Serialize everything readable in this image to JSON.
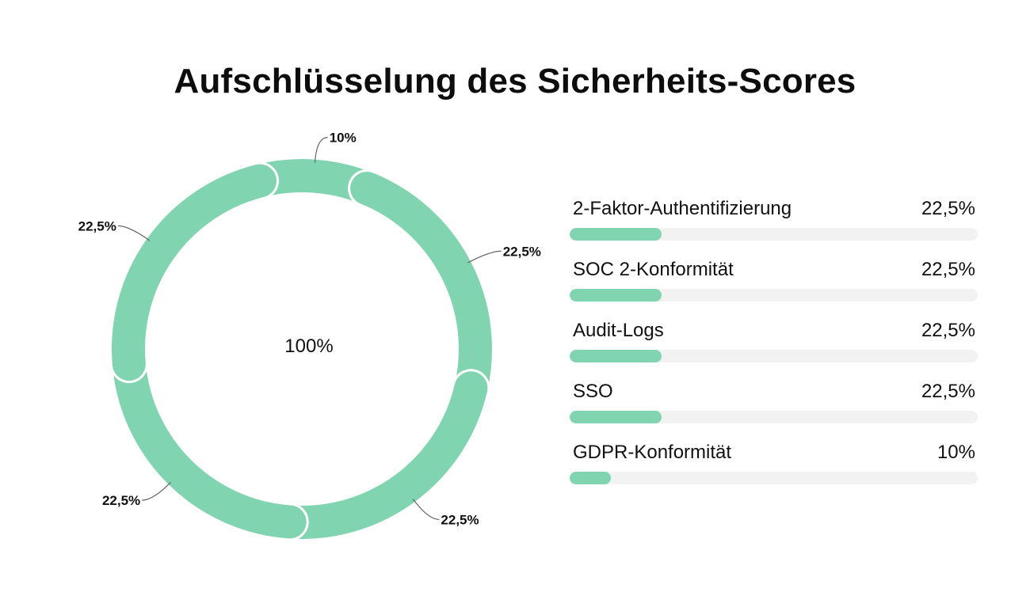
{
  "title": "Aufschlüsselung des Sicherheits-Scores",
  "colors": {
    "segment": "#80d5b0",
    "track": "#f2f2f2",
    "separator": "#ffffff",
    "leader": "#666666",
    "text": "#111111"
  },
  "chart_data": {
    "type": "pie",
    "variant": "donut",
    "title": "Aufschlüsselung des Sicherheits-Scores",
    "center_label": "100%",
    "total": 100,
    "slices": [
      {
        "name": "2-Faktor-Authentifizierung",
        "value": 22.5,
        "label": "22,5%"
      },
      {
        "name": "SOC 2-Konformität",
        "value": 22.5,
        "label": "22,5%"
      },
      {
        "name": "Audit-Logs",
        "value": 22.5,
        "label": "22,5%"
      },
      {
        "name": "SSO",
        "value": 22.5,
        "label": "22,5%"
      },
      {
        "name": "GDPR-Konformität",
        "value": 10,
        "label": "10%"
      }
    ],
    "legend": {
      "placement": "right",
      "items": [
        {
          "name": "2-Faktor-Authentifizierung",
          "value_label": "22,5%",
          "fraction": 0.225
        },
        {
          "name": "SOC 2-Konformität",
          "value_label": "22,5%",
          "fraction": 0.225
        },
        {
          "name": "Audit-Logs",
          "value_label": "22,5%",
          "fraction": 0.225
        },
        {
          "name": "SSO",
          "value_label": "22,5%",
          "fraction": 0.225
        },
        {
          "name": "GDPR-Konformität",
          "value_label": "10%",
          "fraction": 0.1
        }
      ]
    }
  }
}
